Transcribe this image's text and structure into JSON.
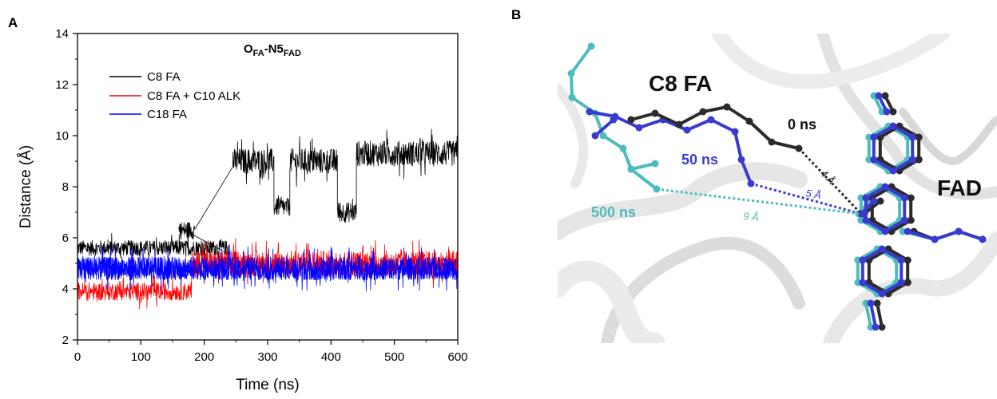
{
  "panel_a": {
    "letter": "A"
  },
  "panel_b": {
    "letter": "B"
  },
  "chart_data": {
    "type": "line",
    "title": "O_FA-N5_FAD",
    "title_parts": {
      "base1": "O",
      "sub1": "FA",
      "dash": "-N5",
      "sub2": "FAD"
    },
    "xlabel": "Time (ns)",
    "ylabel": "Distance (Å)",
    "xlim": [
      0,
      600
    ],
    "ylim": [
      2,
      14
    ],
    "xticks": [
      0,
      100,
      200,
      300,
      400,
      500,
      600
    ],
    "yticks": [
      2,
      4,
      6,
      8,
      10,
      12,
      14
    ],
    "legend_position": "top-left",
    "grid": false,
    "series": [
      {
        "name": "C8 FA",
        "color": "#000000",
        "segments": [
          {
            "x": [
              0,
              240
            ],
            "mean": 5.6,
            "noise": 0.3
          },
          {
            "x": [
              160,
              185
            ],
            "mean": 6.3,
            "noise": 0.35
          },
          {
            "x": [
              245,
              310
            ],
            "mean": 9.0,
            "noise": 0.5
          },
          {
            "x": [
              310,
              335
            ],
            "mean": 7.2,
            "noise": 0.35
          },
          {
            "x": [
              335,
              410
            ],
            "mean": 9.0,
            "noise": 0.5
          },
          {
            "x": [
              410,
              440
            ],
            "mean": 7.0,
            "noise": 0.4
          },
          {
            "x": [
              440,
              600
            ],
            "mean": 9.3,
            "noise": 0.5
          }
        ]
      },
      {
        "name": "C8 FA + C10 ALK",
        "color": "#ff0000",
        "segments": [
          {
            "x": [
              0,
              180
            ],
            "mean": 3.9,
            "noise": 0.35
          },
          {
            "x": [
              180,
              600
            ],
            "mean": 5.0,
            "noise": 0.5
          }
        ]
      },
      {
        "name": "C18 FA",
        "color": "#0000ff",
        "segments": [
          {
            "x": [
              0,
              600
            ],
            "mean": 4.8,
            "noise": 0.45
          }
        ]
      }
    ]
  },
  "structure": {
    "labels": {
      "c8fa": "C8 FA",
      "fad": "FAD",
      "t0": "0 ns",
      "t50": "50 ns",
      "t500": "500 ns"
    },
    "distances": {
      "d4": "4 Å",
      "d5": "5 Å",
      "d9": "9 Å"
    },
    "colors": {
      "black": "#2b2b2b",
      "blue": "#3a3ad0",
      "teal": "#4cbcbc",
      "protein": "#e4e4e4"
    }
  }
}
